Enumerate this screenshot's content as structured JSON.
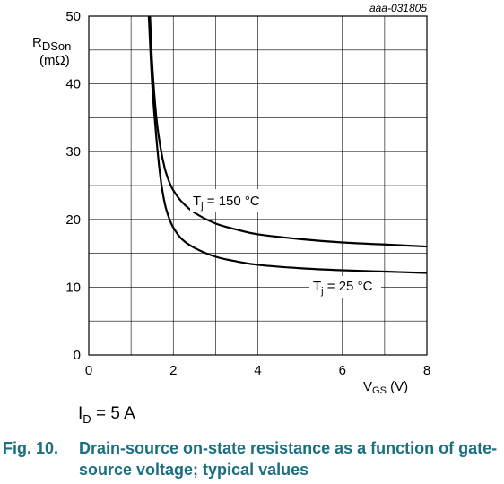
{
  "chart_data": {
    "type": "line",
    "figure_code": "aaa-031805",
    "ylabel_main": "R",
    "ylabel_sub": "DSon",
    "ylabel_unit": "(mΩ)",
    "xlabel_main": "V",
    "xlabel_sub": "GS",
    "xlabel_unit": " (V)",
    "xlim": [
      0,
      8
    ],
    "ylim": [
      0,
      50
    ],
    "x_ticks": [
      0,
      2,
      4,
      6,
      8
    ],
    "y_ticks": [
      0,
      10,
      20,
      30,
      40,
      50
    ],
    "grid": true,
    "series": [
      {
        "name_main": "T",
        "name_sub": "j",
        "name_rest": " = 150 °C",
        "x": [
          1.45,
          1.5,
          1.6,
          1.7,
          1.8,
          1.9,
          2.0,
          2.2,
          2.5,
          3.0,
          3.5,
          4.0,
          5.0,
          6.0,
          7.0,
          8.0
        ],
        "y": [
          50,
          43,
          35,
          30.5,
          27.5,
          25.6,
          24.3,
          22.6,
          21.0,
          19.4,
          18.5,
          17.8,
          17.1,
          16.6,
          16.3,
          16.0
        ]
      },
      {
        "name_main": "T",
        "name_sub": "j",
        "name_rest": " = 25 °C",
        "x": [
          1.42,
          1.5,
          1.6,
          1.7,
          1.8,
          1.9,
          2.0,
          2.2,
          2.5,
          3.0,
          3.5,
          4.0,
          5.0,
          6.0,
          7.0,
          8.0
        ],
        "y": [
          50,
          40,
          32,
          26,
          22.3,
          20.2,
          18.8,
          17.1,
          15.8,
          14.5,
          13.8,
          13.3,
          12.8,
          12.5,
          12.3,
          12.1
        ]
      }
    ]
  },
  "condition": {
    "main": "I",
    "sub": "D",
    "rest": " = 5 A"
  },
  "caption": {
    "number": "Fig. 10.",
    "text": "Drain-source on-state resistance as a function of gate-source voltage; typical values"
  }
}
